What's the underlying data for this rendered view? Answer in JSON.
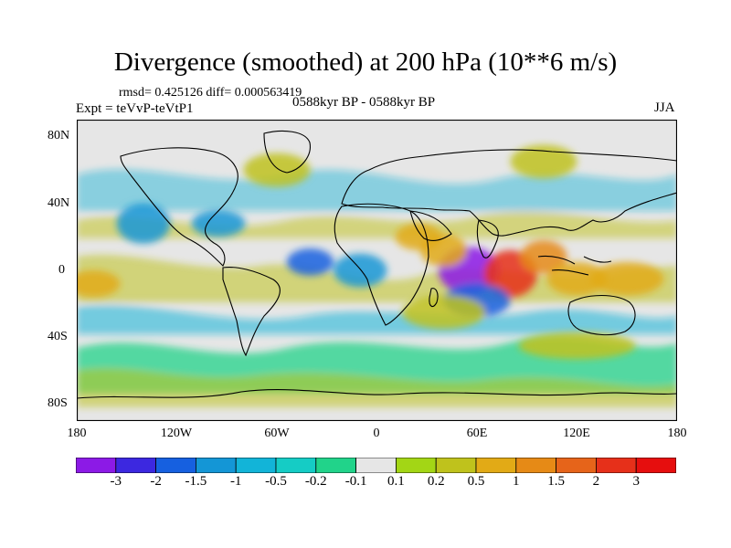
{
  "title": "Divergence (smoothed) at 200 hPa (10**6 m/s)",
  "stats_text": "rmsd= 0.425126 diff= 0.000563419",
  "experiment_text": "Expt = teVvP-teVtP1",
  "period_text": "0588kyr BP - 0588kyr BP",
  "season": "JJA",
  "lat_labels": [
    "80N",
    "40N",
    "0",
    "40S",
    "80S"
  ],
  "lon_labels": [
    "180",
    "120W",
    "60W",
    "0",
    "60E",
    "120E",
    "180"
  ],
  "colorbar": {
    "labels": [
      "-3",
      "-2",
      "-1.5",
      "-1",
      "-0.5",
      "-0.2",
      "-0.1",
      "0.1",
      "0.2",
      "0.5",
      "1",
      "1.5",
      "2",
      "3"
    ],
    "colors": [
      "#8c1ae6",
      "#3c28e0",
      "#1660e0",
      "#1496d6",
      "#12b4d8",
      "#15ccc5",
      "#21d38a",
      "#e6e6e6",
      "#a3d615",
      "#bfc21c",
      "#e2aa16",
      "#e68a16",
      "#e6641a",
      "#e6301a",
      "#e60e0e"
    ]
  },
  "map_features": {
    "anomaly_blobs": [
      {
        "lon": 55,
        "lat": 0,
        "rx": 18,
        "ry": 14,
        "level": -3
      },
      {
        "lon": 80,
        "lat": -2,
        "rx": 16,
        "ry": 14,
        "level": 3
      },
      {
        "lon": -40,
        "lat": 5,
        "rx": 14,
        "ry": 8,
        "level": -1.5
      },
      {
        "lon": -10,
        "lat": 0,
        "rx": 16,
        "ry": 10,
        "level": -1
      },
      {
        "lon": 60,
        "lat": -18,
        "rx": 20,
        "ry": 10,
        "level": -1.5
      },
      {
        "lon": 100,
        "lat": 8,
        "rx": 14,
        "ry": 10,
        "level": 1.5
      },
      {
        "lon": 120,
        "lat": -5,
        "rx": 18,
        "ry": 10,
        "level": 1
      },
      {
        "lon": 150,
        "lat": -5,
        "rx": 22,
        "ry": 10,
        "level": 1
      },
      {
        "lon": -170,
        "lat": -8,
        "rx": 16,
        "ry": 8,
        "level": 1
      },
      {
        "lon": -140,
        "lat": 28,
        "rx": 16,
        "ry": 12,
        "level": -1
      },
      {
        "lon": -95,
        "lat": 28,
        "rx": 16,
        "ry": 8,
        "level": -1
      },
      {
        "lon": 25,
        "lat": 20,
        "rx": 14,
        "ry": 8,
        "level": 1
      },
      {
        "lon": 40,
        "lat": 12,
        "rx": 14,
        "ry": 10,
        "level": 1
      },
      {
        "lon": 40,
        "lat": -25,
        "rx": 25,
        "ry": 10,
        "level": 0.5
      },
      {
        "lon": 120,
        "lat": -45,
        "rx": 35,
        "ry": 8,
        "level": 0.5
      },
      {
        "lon": -60,
        "lat": 60,
        "rx": 20,
        "ry": 10,
        "level": 0.5
      },
      {
        "lon": 100,
        "lat": 65,
        "rx": 20,
        "ry": 10,
        "level": 0.5
      }
    ]
  }
}
